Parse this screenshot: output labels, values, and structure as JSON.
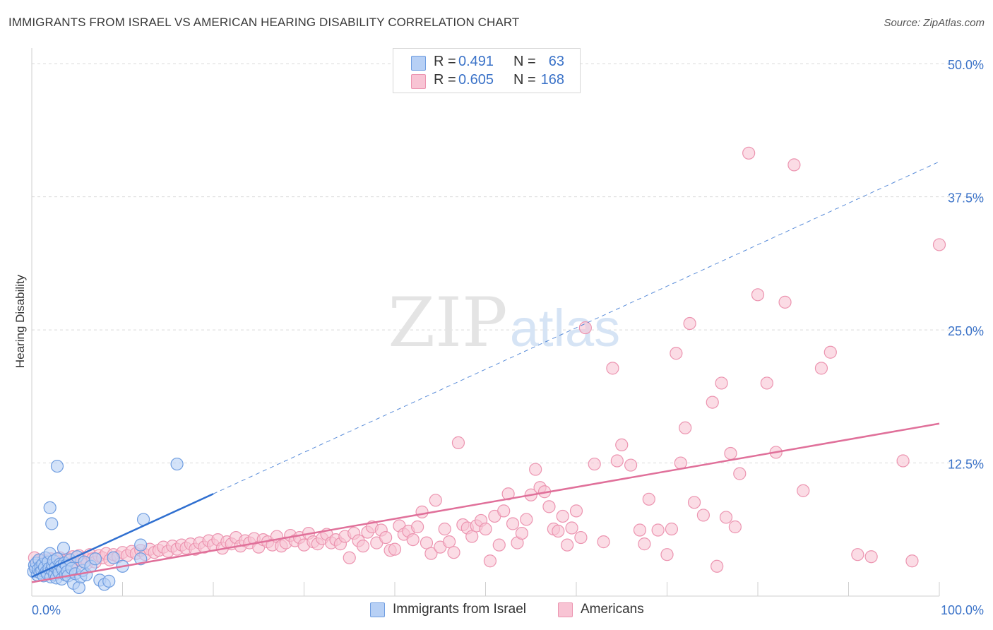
{
  "title": "IMMIGRANTS FROM ISRAEL VS AMERICAN HEARING DISABILITY CORRELATION CHART",
  "source": "Source: ZipAtlas.com",
  "watermark": {
    "zip": "ZIP",
    "atlas": "atlas"
  },
  "colors": {
    "blue_fill": "#b7d0f5",
    "blue_stroke": "#6f9de0",
    "blue_line": "#2f6fd0",
    "pink_fill": "#f8c4d4",
    "pink_stroke": "#ec94b0",
    "pink_line": "#e0709a",
    "tick_label": "#3a72c8",
    "grid": "#d9d9d9"
  },
  "legend_top": {
    "rows": [
      {
        "swatch": "blue",
        "r_label": "R =",
        "r_value": "0.491",
        "n_label": "N =",
        "n_value": "63"
      },
      {
        "swatch": "pink",
        "r_label": "R =",
        "r_value": "0.605",
        "n_label": "N =",
        "n_value": "168"
      }
    ]
  },
  "legend_bottom": [
    {
      "swatch": "blue",
      "label": "Immigrants from Israel"
    },
    {
      "swatch": "pink",
      "label": "Americans"
    }
  ],
  "chart_data": {
    "type": "scatter",
    "ylabel": "Hearing Disability",
    "x_tick_labels": [
      "0.0%",
      "100.0%"
    ],
    "y_tick_labels": [
      "12.5%",
      "25.0%",
      "37.5%",
      "50.0%"
    ],
    "y_ticks": [
      12.5,
      25.0,
      37.5,
      50.0
    ],
    "xlim": [
      0,
      100
    ],
    "ylim": [
      0,
      52
    ],
    "grid": "horizontal-dashed",
    "legend_placement": "top-center and bottom",
    "series": [
      {
        "name": "Immigrants from Israel",
        "color": "blue",
        "points": [
          [
            0.2,
            2.3
          ],
          [
            0.3,
            2.9
          ],
          [
            0.4,
            2.6
          ],
          [
            0.5,
            3.1
          ],
          [
            0.6,
            2.0
          ],
          [
            0.7,
            2.5
          ],
          [
            0.8,
            3.4
          ],
          [
            0.9,
            2.2
          ],
          [
            1.0,
            2.8
          ],
          [
            1.1,
            2.4
          ],
          [
            1.2,
            3.0
          ],
          [
            1.3,
            1.9
          ],
          [
            1.4,
            2.7
          ],
          [
            1.5,
            3.6
          ],
          [
            1.6,
            2.3
          ],
          [
            1.7,
            2.1
          ],
          [
            1.8,
            3.2
          ],
          [
            1.9,
            2.6
          ],
          [
            2.0,
            4.0
          ],
          [
            2.1,
            1.8
          ],
          [
            2.2,
            2.5
          ],
          [
            2.3,
            2.9
          ],
          [
            2.4,
            3.3
          ],
          [
            2.5,
            2.0
          ],
          [
            2.6,
            2.7
          ],
          [
            2.7,
            1.7
          ],
          [
            2.8,
            3.5
          ],
          [
            2.9,
            2.4
          ],
          [
            3.0,
            2.2
          ],
          [
            3.1,
            3.0
          ],
          [
            3.2,
            2.8
          ],
          [
            3.3,
            1.6
          ],
          [
            3.4,
            2.5
          ],
          [
            3.5,
            4.5
          ],
          [
            3.6,
            3.1
          ],
          [
            3.7,
            2.0
          ],
          [
            3.8,
            2.9
          ],
          [
            3.9,
            2.3
          ],
          [
            4.0,
            1.9
          ],
          [
            4.2,
            3.4
          ],
          [
            4.4,
            2.6
          ],
          [
            4.6,
            1.2
          ],
          [
            4.8,
            2.1
          ],
          [
            5.0,
            3.7
          ],
          [
            5.2,
            0.8
          ],
          [
            5.4,
            1.8
          ],
          [
            5.6,
            2.4
          ],
          [
            5.8,
            3.2
          ],
          [
            6.0,
            2.0
          ],
          [
            6.5,
            2.8
          ],
          [
            7.0,
            3.5
          ],
          [
            7.5,
            1.5
          ],
          [
            8.0,
            1.1
          ],
          [
            8.5,
            1.4
          ],
          [
            9.0,
            3.6
          ],
          [
            10.0,
            2.8
          ],
          [
            12.0,
            4.8
          ],
          [
            2.0,
            8.3
          ],
          [
            2.2,
            6.8
          ],
          [
            2.8,
            12.2
          ],
          [
            12.0,
            3.5
          ],
          [
            12.3,
            7.2
          ],
          [
            16.0,
            12.4
          ]
        ],
        "trend": {
          "x0": 0,
          "y0": 1.8,
          "x1": 100,
          "y1": 40.8,
          "solid_until_x": 20
        }
      },
      {
        "name": "Americans",
        "color": "pink",
        "points": [
          [
            0.3,
            3.6
          ],
          [
            0.5,
            2.9
          ],
          [
            0.7,
            3.3
          ],
          [
            0.9,
            2.6
          ],
          [
            1.1,
            3.0
          ],
          [
            1.3,
            3.4
          ],
          [
            1.5,
            2.8
          ],
          [
            1.7,
            3.2
          ],
          [
            1.9,
            2.5
          ],
          [
            2.1,
            3.5
          ],
          [
            2.3,
            3.0
          ],
          [
            2.5,
            2.7
          ],
          [
            2.7,
            3.3
          ],
          [
            2.9,
            2.9
          ],
          [
            3.1,
            3.6
          ],
          [
            3.3,
            2.6
          ],
          [
            3.5,
            3.1
          ],
          [
            3.7,
            3.4
          ],
          [
            3.9,
            2.8
          ],
          [
            4.1,
            3.5
          ],
          [
            4.3,
            3.0
          ],
          [
            4.5,
            3.7
          ],
          [
            4.7,
            3.2
          ],
          [
            4.9,
            2.9
          ],
          [
            5.2,
            3.8
          ],
          [
            5.5,
            3.3
          ],
          [
            5.8,
            3.6
          ],
          [
            6.1,
            3.1
          ],
          [
            6.4,
            3.9
          ],
          [
            6.7,
            3.5
          ],
          [
            7.0,
            3.2
          ],
          [
            7.4,
            3.8
          ],
          [
            7.8,
            3.6
          ],
          [
            8.2,
            4.0
          ],
          [
            8.6,
            3.4
          ],
          [
            9.0,
            3.9
          ],
          [
            9.5,
            3.7
          ],
          [
            10.0,
            4.1
          ],
          [
            10.5,
            3.8
          ],
          [
            11.0,
            4.2
          ],
          [
            11.5,
            4.0
          ],
          [
            12.0,
            4.3
          ],
          [
            12.5,
            3.9
          ],
          [
            13.0,
            4.4
          ],
          [
            13.5,
            4.1
          ],
          [
            14.0,
            4.3
          ],
          [
            14.5,
            4.6
          ],
          [
            15.0,
            4.2
          ],
          [
            15.5,
            4.7
          ],
          [
            16.0,
            4.4
          ],
          [
            16.5,
            4.8
          ],
          [
            17.0,
            4.5
          ],
          [
            17.5,
            4.9
          ],
          [
            18.0,
            4.4
          ],
          [
            18.5,
            5.0
          ],
          [
            19.0,
            4.6
          ],
          [
            19.5,
            5.2
          ],
          [
            20.0,
            4.8
          ],
          [
            20.5,
            5.3
          ],
          [
            21.0,
            4.5
          ],
          [
            21.5,
            5.1
          ],
          [
            22.0,
            4.9
          ],
          [
            22.5,
            5.5
          ],
          [
            23.0,
            4.7
          ],
          [
            23.5,
            5.2
          ],
          [
            24.0,
            5.0
          ],
          [
            24.5,
            5.4
          ],
          [
            25.0,
            4.6
          ],
          [
            25.5,
            5.3
          ],
          [
            26.0,
            5.1
          ],
          [
            26.5,
            4.8
          ],
          [
            27.0,
            5.6
          ],
          [
            27.5,
            4.7
          ],
          [
            28.0,
            5.0
          ],
          [
            28.5,
            5.7
          ],
          [
            29.0,
            5.2
          ],
          [
            29.5,
            5.5
          ],
          [
            30.0,
            4.8
          ],
          [
            30.5,
            5.9
          ],
          [
            31.0,
            5.1
          ],
          [
            31.5,
            4.9
          ],
          [
            32.0,
            5.4
          ],
          [
            32.5,
            5.8
          ],
          [
            33.0,
            5.0
          ],
          [
            33.5,
            5.3
          ],
          [
            34.0,
            4.9
          ],
          [
            34.5,
            5.6
          ],
          [
            35.0,
            3.6
          ],
          [
            35.5,
            5.9
          ],
          [
            36.0,
            5.2
          ],
          [
            36.5,
            4.7
          ],
          [
            37.0,
            6.0
          ],
          [
            37.5,
            6.5
          ],
          [
            38.0,
            5.0
          ],
          [
            38.5,
            6.2
          ],
          [
            39.0,
            5.5
          ],
          [
            39.5,
            4.3
          ],
          [
            40.0,
            4.4
          ],
          [
            40.5,
            6.6
          ],
          [
            41.0,
            5.8
          ],
          [
            41.5,
            6.1
          ],
          [
            42.0,
            5.3
          ],
          [
            42.5,
            6.5
          ],
          [
            43.0,
            7.9
          ],
          [
            43.5,
            5.0
          ],
          [
            44.0,
            4.0
          ],
          [
            44.5,
            9.0
          ],
          [
            45.0,
            4.6
          ],
          [
            45.5,
            6.3
          ],
          [
            46.0,
            5.1
          ],
          [
            46.5,
            4.1
          ],
          [
            47.0,
            14.4
          ],
          [
            47.5,
            6.7
          ],
          [
            48.0,
            6.4
          ],
          [
            48.5,
            5.6
          ],
          [
            49.0,
            6.6
          ],
          [
            49.5,
            7.1
          ],
          [
            50.0,
            6.3
          ],
          [
            50.5,
            3.3
          ],
          [
            51.0,
            7.5
          ],
          [
            51.5,
            4.8
          ],
          [
            52.0,
            8.0
          ],
          [
            52.5,
            9.6
          ],
          [
            53.0,
            6.8
          ],
          [
            53.5,
            5.0
          ],
          [
            54.0,
            5.9
          ],
          [
            54.5,
            7.2
          ],
          [
            55.0,
            9.5
          ],
          [
            55.5,
            11.9
          ],
          [
            56.0,
            10.2
          ],
          [
            56.5,
            9.8
          ],
          [
            57.0,
            8.4
          ],
          [
            57.5,
            6.3
          ],
          [
            58.0,
            6.1
          ],
          [
            58.5,
            7.5
          ],
          [
            59.0,
            4.8
          ],
          [
            59.5,
            6.4
          ],
          [
            60.0,
            8.0
          ],
          [
            60.5,
            5.5
          ],
          [
            61.0,
            25.2
          ],
          [
            62.0,
            12.4
          ],
          [
            63.0,
            5.1
          ],
          [
            64.0,
            21.4
          ],
          [
            64.5,
            12.7
          ],
          [
            65.0,
            14.2
          ],
          [
            66.0,
            12.3
          ],
          [
            67.0,
            6.2
          ],
          [
            67.5,
            4.9
          ],
          [
            68.0,
            9.1
          ],
          [
            69.0,
            6.2
          ],
          [
            70.0,
            3.9
          ],
          [
            70.5,
            6.3
          ],
          [
            71.0,
            22.8
          ],
          [
            71.5,
            12.5
          ],
          [
            72.0,
            15.8
          ],
          [
            72.5,
            25.6
          ],
          [
            73.0,
            8.8
          ],
          [
            74.0,
            7.6
          ],
          [
            75.0,
            18.2
          ],
          [
            75.5,
            2.8
          ],
          [
            76.0,
            20.0
          ],
          [
            76.5,
            7.4
          ],
          [
            77.0,
            13.4
          ],
          [
            77.5,
            6.5
          ],
          [
            78.0,
            11.5
          ],
          [
            79.0,
            41.6
          ],
          [
            80.0,
            28.3
          ],
          [
            81.0,
            20.0
          ],
          [
            82.0,
            13.5
          ],
          [
            83.0,
            27.6
          ],
          [
            84.0,
            40.5
          ],
          [
            85.0,
            9.9
          ],
          [
            87.0,
            21.4
          ],
          [
            88.0,
            22.9
          ],
          [
            91.0,
            3.9
          ],
          [
            92.5,
            3.7
          ],
          [
            96.0,
            12.7
          ],
          [
            97.0,
            3.3
          ],
          [
            100.0,
            33.0
          ]
        ],
        "trend": {
          "x0": 0,
          "y0": 1.3,
          "x1": 100,
          "y1": 16.2
        }
      }
    ]
  }
}
